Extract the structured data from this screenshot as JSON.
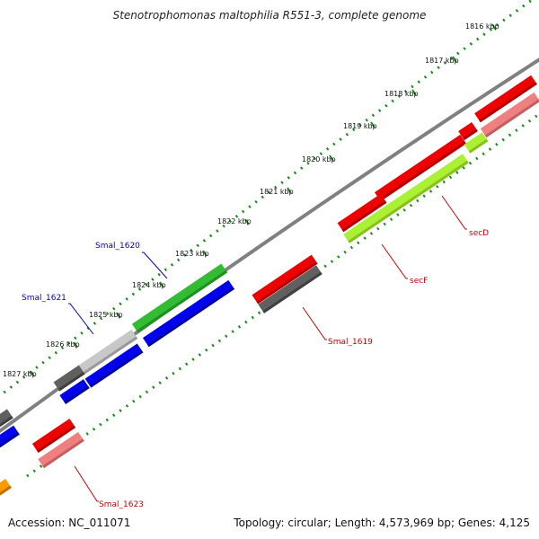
{
  "title": "Stenotrophomonas maltophilia R551-3, complete genome",
  "footer": {
    "accession": "Accession: NC_011071",
    "summary": "Topology: circular; Length: 4,573,969 bp; Genes: 4,125"
  },
  "scale_ticks": [
    "1816 kbp",
    "1817 kbp",
    "1818 kbp",
    "1819 kbp",
    "1820 kbp",
    "1821 kbp",
    "1822 kbp",
    "1823 kbp",
    "1824 kbp",
    "1825 kbp",
    "1826 kbp",
    "1827 kbp"
  ],
  "gene_labels": [
    {
      "text": "secD",
      "color": "#cc0000"
    },
    {
      "text": "secF",
      "color": "#cc0000"
    },
    {
      "text": "Smal_1619",
      "color": "#cc0000"
    },
    {
      "text": "Smal_1620",
      "color": "#0000cc"
    },
    {
      "text": "Smal_1621",
      "color": "#0000cc"
    },
    {
      "text": "Smal_1623",
      "color": "#cc0000"
    }
  ],
  "colors": {
    "backbone": "#808080",
    "ticks": "#1a8a1a",
    "red": "#ee0000",
    "pink": "#f08080",
    "dark_gray": "#606060",
    "light_gray": "#c8c8c8",
    "green": "#33bb33",
    "lime": "#aaf033",
    "blue": "#0000ee",
    "orange": "#ff9900"
  }
}
